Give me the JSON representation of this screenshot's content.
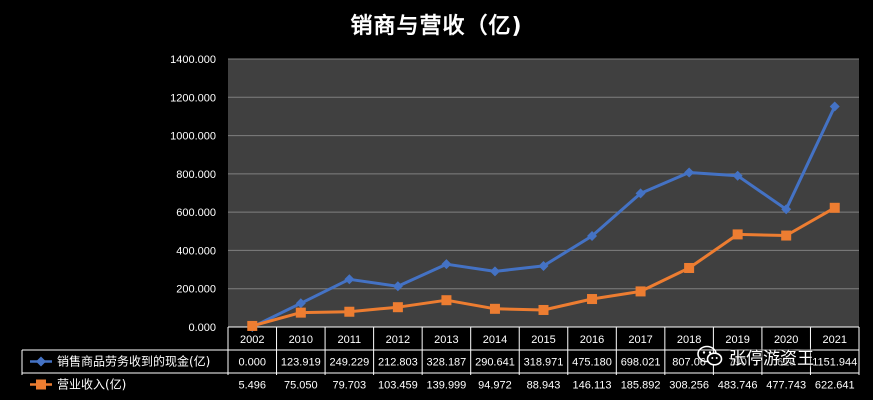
{
  "chart_data": {
    "type": "line",
    "title": "销商与营收（亿)",
    "categories": [
      "2002",
      "2010",
      "2011",
      "2012",
      "2013",
      "2014",
      "2015",
      "2016",
      "2017",
      "2018",
      "2019",
      "2020",
      "2021"
    ],
    "ylim": [
      0,
      1400
    ],
    "yticks": [
      "0.000",
      "200.000",
      "400.000",
      "600.000",
      "800.000",
      "1000.000",
      "1200.000",
      "1400.000"
    ],
    "grid": true,
    "legend": "data-table-left",
    "series": [
      {
        "name": "销售商品劳务收到的现金(亿)",
        "color": "#4472c4",
        "marker": "diamond",
        "values": [
          0.0,
          123.919,
          249.229,
          212.803,
          328.187,
          290.641,
          318.971,
          475.18,
          698.021,
          807.06,
          790.0,
          615.0,
          1151.944
        ],
        "labels": [
          "0.000",
          "123.919",
          "249.229",
          "212.803",
          "328.187",
          "290.641",
          "318.971",
          "475.180",
          "698.021",
          "807.06",
          "790",
          "615",
          "1151.944"
        ]
      },
      {
        "name": "营业收入(亿)",
        "color": "#ed7d31",
        "marker": "square",
        "values": [
          5.496,
          75.05,
          79.703,
          103.459,
          139.999,
          94.972,
          88.943,
          146.113,
          185.892,
          308.256,
          483.746,
          477.743,
          622.641
        ],
        "labels": [
          "5.496",
          "75.050",
          "79.703",
          "103.459",
          "139.999",
          "94.972",
          "88.943",
          "146.113",
          "185.892",
          "308.256",
          "483.746",
          "477.743",
          "622.641"
        ]
      }
    ]
  },
  "watermark": {
    "text": "张停游资王",
    "icon": "wechat-icon"
  }
}
